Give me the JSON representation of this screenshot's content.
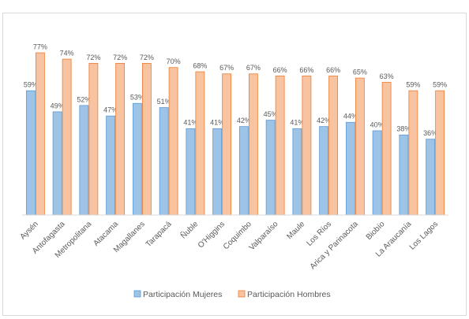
{
  "chart_data": {
    "type": "bar",
    "categories": [
      "Aysén",
      "Antofagasta",
      "Metropolitana",
      "Atacama",
      "Magallanes",
      "Tarapacá",
      "Ñuble",
      "O'Higgins",
      "Coquimbo",
      "Valparaíso",
      "Maule",
      "Los Ríos",
      "Arica y Parinacota",
      "Biobío",
      "La Araucanía",
      "Los Lagos"
    ],
    "series": [
      {
        "name": "Participación Mujeres",
        "color": "#9dc3e6",
        "border": "#5b9bd5",
        "values": [
          59,
          49,
          52,
          47,
          53,
          51,
          41,
          41,
          42,
          45,
          41,
          42,
          44,
          40,
          38,
          36
        ],
        "value_labels": [
          "59%",
          "49%",
          "52%",
          "47%",
          "53%",
          "51%",
          "41%",
          "41%",
          "42%",
          "45%",
          "41%",
          "42%",
          "44%",
          "40%",
          "38%",
          "36%"
        ]
      },
      {
        "name": "Participación Hombres",
        "color": "#f8c3a0",
        "border": "#ed7d31",
        "values": [
          77,
          74,
          72,
          72,
          72,
          70,
          68,
          67,
          67,
          66,
          66,
          66,
          65,
          63,
          59,
          59
        ],
        "value_labels": [
          "77%",
          "74%",
          "72%",
          "72%",
          "72%",
          "70%",
          "68%",
          "67%",
          "67%",
          "66%",
          "66%",
          "66%",
          "65%",
          "63%",
          "59%",
          "59%"
        ]
      }
    ],
    "ylim": [
      0,
      80
    ],
    "legend": "bottom"
  }
}
